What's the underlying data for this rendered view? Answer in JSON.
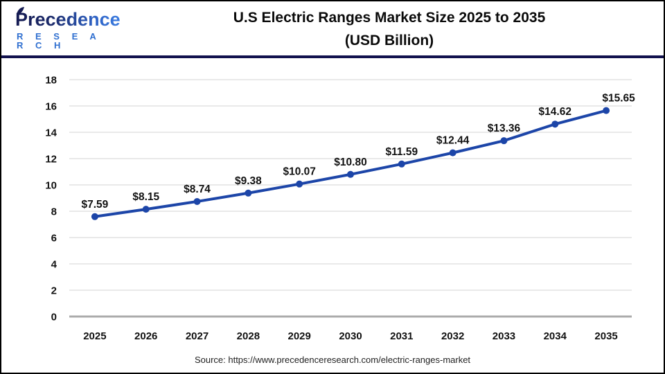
{
  "header": {
    "logo_line1": "Precedence",
    "logo_line2": "R E S E A R C H",
    "title_line1": "U.S Electric Ranges Market Size 2025 to 2035",
    "title_line2": "(USD Billion)"
  },
  "chart_data": {
    "type": "line",
    "title": "U.S Electric Ranges Market Size 2025 to 2035 (USD Billion)",
    "categories": [
      "2025",
      "2026",
      "2027",
      "2028",
      "2029",
      "2030",
      "2031",
      "2032",
      "2033",
      "2034",
      "2035"
    ],
    "series": [
      {
        "name": "U.S Electric Ranges Market Size (USD Billion)",
        "values": [
          7.59,
          8.15,
          8.74,
          9.38,
          10.07,
          10.8,
          11.59,
          12.44,
          13.36,
          14.62,
          15.65
        ]
      }
    ],
    "data_labels": [
      "$7.59",
      "$8.15",
      "$8.74",
      "$9.38",
      "$10.07",
      "$10.80",
      "$11.59",
      "$12.44",
      "$13.36",
      "$14.62",
      "$15.65"
    ],
    "xlabel": "",
    "ylabel": "",
    "ylim": [
      0,
      18
    ],
    "ytick_step": 2,
    "grid": true,
    "legend": "none",
    "line_color": "#1c45a8",
    "grid_color": "#e9e9e9",
    "axis_line_color": "#ababab",
    "label_color": "#111111"
  },
  "footer": {
    "source": "Source: https://www.precedenceresearch.com/electric-ranges-market"
  },
  "colors": {
    "divider": "#12124e",
    "logo_dark": "#151b52",
    "logo_light": "#3b7ce0",
    "border": "#000000"
  }
}
